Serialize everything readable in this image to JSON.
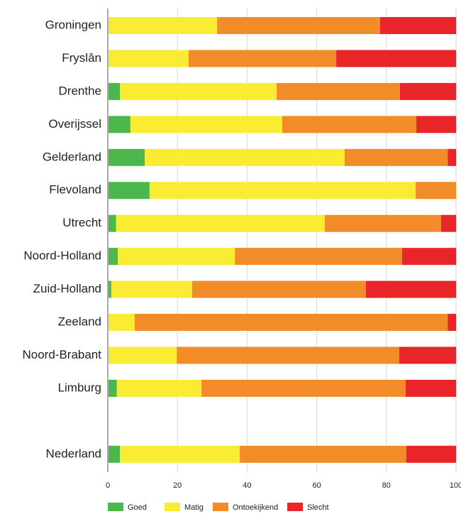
{
  "chart_data": {
    "type": "stacked_barh",
    "categories": [
      "Groningen",
      "Fryslân",
      "Drenthe",
      "Overijssel",
      "Gelderland",
      "Flevoland",
      "Utrecht",
      "Noord-Holland",
      "Zuid-Holland",
      "Zeeland",
      "Noord-Brabant",
      "Limburg",
      null,
      "Nederland"
    ],
    "series": [
      {
        "name": "Goed",
        "color": "#4cb74c",
        "values": [
          0,
          0,
          3.5,
          6.5,
          10.6,
          12,
          2.4,
          2.9,
          1,
          0,
          0,
          2.6,
          null,
          3.5
        ]
      },
      {
        "name": "Matig",
        "color": "#f9ec33",
        "values": [
          31.4,
          23.2,
          45,
          43.6,
          57.4,
          76.4,
          59.9,
          33.6,
          23.2,
          7.7,
          19.8,
          24.3,
          null,
          34.4
        ]
      },
      {
        "name": "Ontoekijkend",
        "color": "#f28c28",
        "values": [
          46.8,
          42.4,
          35.4,
          38.5,
          29.6,
          11.6,
          33.4,
          48,
          49.9,
          89.9,
          63.9,
          58.6,
          null,
          47.8
        ]
      },
      {
        "name": "Slecht",
        "color": "#e8262a",
        "values": [
          21.8,
          34.4,
          16.1,
          11.4,
          2.4,
          0,
          4.3,
          15.5,
          25.9,
          2.4,
          16.3,
          14.5,
          null,
          14.3
        ]
      }
    ],
    "xlim": [
      0,
      100
    ],
    "xticks": [
      0,
      20,
      40,
      60,
      80,
      100
    ],
    "grid": true
  }
}
